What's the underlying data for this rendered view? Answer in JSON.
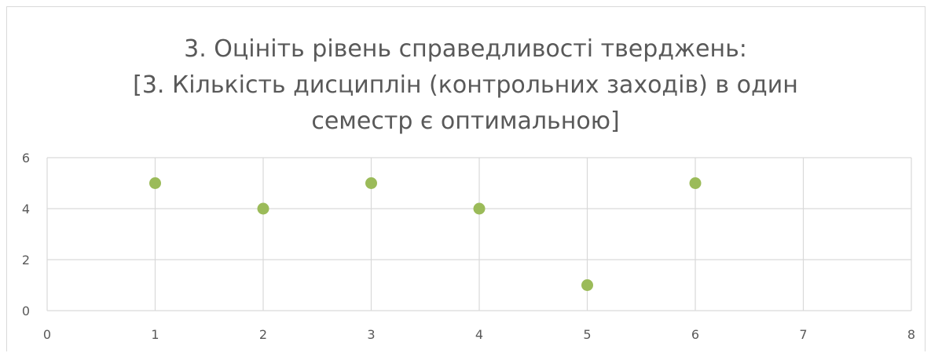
{
  "chart_data": {
    "type": "scatter",
    "title_lines": [
      "3. Оцініть рівень справедливості тверджень:",
      "[3. Кількість дисциплін (контрольних заходів) в один",
      "семестр є оптимальною]"
    ],
    "xlabel": "",
    "ylabel": "",
    "xlim": [
      0,
      8
    ],
    "ylim": [
      0,
      6
    ],
    "x_ticks": [
      "0",
      "1",
      "2",
      "3",
      "4",
      "5",
      "6",
      "7",
      "8"
    ],
    "y_ticks": [
      "0",
      "2",
      "4",
      "6"
    ],
    "grid": true,
    "legend": "none",
    "series": [
      {
        "color": "#9bbb59",
        "points": [
          {
            "x": 1,
            "y": 5
          },
          {
            "x": 2,
            "y": 4
          },
          {
            "x": 3,
            "y": 5
          },
          {
            "x": 4,
            "y": 4
          },
          {
            "x": 5,
            "y": 1
          },
          {
            "x": 6,
            "y": 5
          }
        ]
      }
    ]
  }
}
